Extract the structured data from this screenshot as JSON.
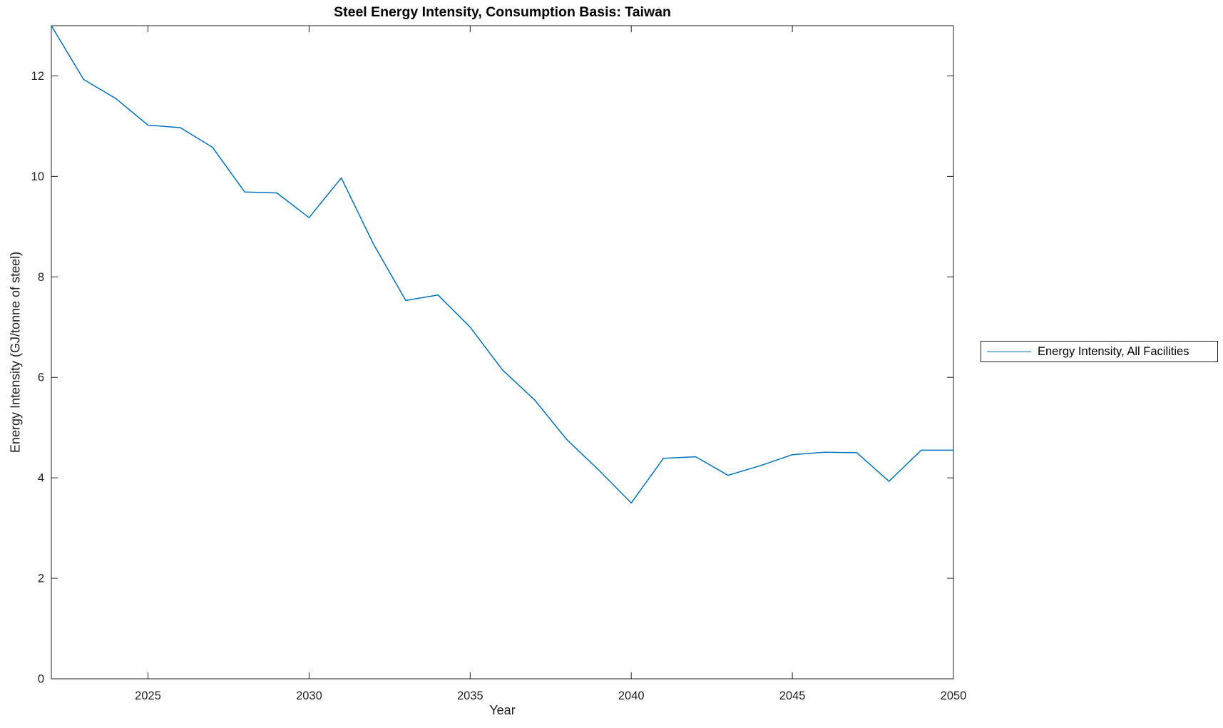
{
  "figure": {
    "title": "Steel Energy Intensity, Consumption Basis: Taiwan",
    "xlabel": "Year",
    "ylabel": "Energy Intensity (GJ/tonne of steel)"
  },
  "legend": {
    "label": "Energy Intensity, All Facilities",
    "line_color": "#0072BD"
  },
  "chart_data": {
    "type": "line",
    "title": "Steel Energy Intensity, Consumption Basis: Taiwan",
    "xlabel": "Year",
    "ylabel": "Energy Intensity (GJ/tonne of steel)",
    "xlim": [
      2022,
      2050
    ],
    "ylim": [
      0,
      13
    ],
    "xticks": [
      2025,
      2030,
      2035,
      2040,
      2045,
      2050
    ],
    "yticks": [
      0,
      2,
      4,
      6,
      8,
      10,
      12
    ],
    "grid": false,
    "legend_position": "outside-right",
    "axis_color": "#1f1f1f",
    "series": [
      {
        "name": "Energy Intensity, All Facilities",
        "color": "#0072BD",
        "x": [
          2022,
          2023,
          2024,
          2025,
          2026,
          2027,
          2028,
          2029,
          2030,
          2031,
          2032,
          2033,
          2034,
          2035,
          2036,
          2037,
          2038,
          2039,
          2040,
          2041,
          2042,
          2043,
          2044,
          2045,
          2046,
          2047,
          2048,
          2049,
          2050
        ],
        "y": [
          13.0,
          11.93,
          11.55,
          11.02,
          10.97,
          10.58,
          9.69,
          9.67,
          9.18,
          9.97,
          8.65,
          7.53,
          7.64,
          7.0,
          6.15,
          5.55,
          4.76,
          4.15,
          3.5,
          4.39,
          4.42,
          4.05,
          4.24,
          4.46,
          4.51,
          4.5,
          3.93,
          4.55,
          4.55
        ]
      }
    ]
  }
}
